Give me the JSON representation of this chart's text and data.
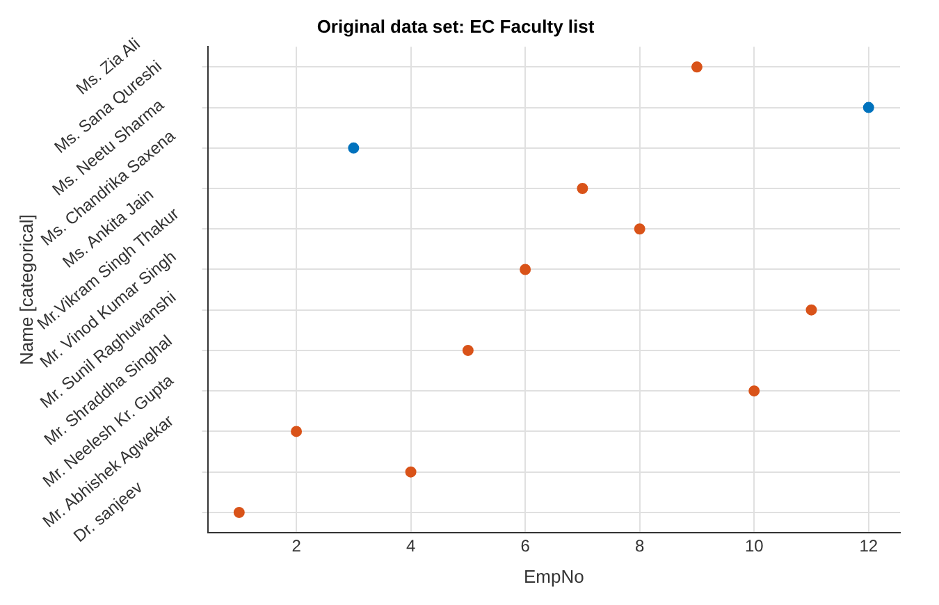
{
  "chart_data": {
    "type": "scatter",
    "title": "Original data set: EC Faculty list",
    "xlabel": "EmpNo",
    "ylabel": "Name [categorical]",
    "orientation": "horizontal",
    "categories": [
      "Ms. Zia Ali",
      "Ms. Sana Qureshi",
      "Ms. Neetu Sharma",
      "Ms. Chandrika Saxena",
      "Ms. Ankita Jain",
      "Mr.Vikram Singh Thakur",
      "Mr. Vinod Kumar Singh",
      "Mr. Sunil Raghuwanshi",
      "Mr. Shraddha Singhal",
      "Mr. Neelesh Kr. Gupta",
      "Mr. Abhishek Agwekar",
      "Dr. sanjeev"
    ],
    "series": [
      {
        "color": "#d95319",
        "values": [
          9,
          null,
          null,
          7,
          8,
          6,
          11,
          5,
          10,
          2,
          4,
          1
        ]
      },
      {
        "color": "#0072bd",
        "values": [
          null,
          12,
          3,
          null,
          null,
          null,
          null,
          null,
          null,
          null,
          null,
          null
        ]
      }
    ],
    "xlim": [
      0.45,
      12.55
    ],
    "xticks": [
      2,
      4,
      6,
      8,
      10,
      12
    ],
    "grid": true,
    "legend": false,
    "marker": "circle"
  }
}
